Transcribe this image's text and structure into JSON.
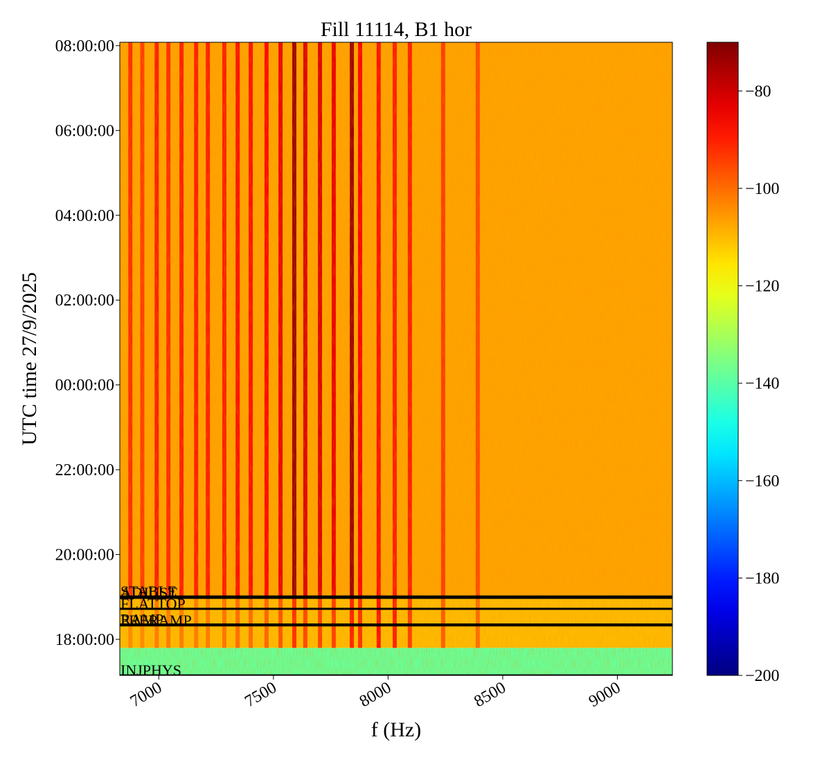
{
  "chart_data": {
    "type": "heatmap",
    "title": "Fill 11114, B1 hor",
    "x_label": "f (Hz)",
    "y_label": "UTC time 27/9/2025",
    "xlim": [
      6830,
      9240
    ],
    "xticks": [
      7000,
      7500,
      8000,
      8500,
      9000
    ],
    "ylim": [
      -6.85,
      8.08
    ],
    "yticks": [
      {
        "value": -6,
        "label": "18:00:00"
      },
      {
        "value": -4,
        "label": "20:00:00"
      },
      {
        "value": -2,
        "label": "22:00:00"
      },
      {
        "value": 0,
        "label": "00:00:00"
      },
      {
        "value": 2,
        "label": "02:00:00"
      },
      {
        "value": 4,
        "label": "04:00:00"
      },
      {
        "value": 6,
        "label": "06:00:00"
      },
      {
        "value": 8,
        "label": "08:00:00"
      }
    ],
    "x": [
      6876,
      6928,
      6991,
      7042,
      7099,
      7163,
      7214,
      7286,
      7344,
      7401,
      7470,
      7531,
      7591,
      7639,
      7703,
      7763,
      7842,
      7878,
      7959,
      8029,
      8095,
      8240,
      8391
    ],
    "y": [
      -6.85,
      -6.2,
      -5.0,
      8.08
    ],
    "background": [
      -138,
      -110,
      -107
    ],
    "z": [
      [
        -138,
        -138,
        -138,
        -138,
        -138,
        -138,
        -138,
        -138,
        -138,
        -138,
        -138,
        -138,
        -138,
        -138,
        -138,
        -138,
        -138,
        -138,
        -138,
        -138,
        -138,
        -138,
        -138
      ],
      [
        -104,
        -104,
        -102,
        -102,
        -102,
        -102,
        -102,
        -101,
        -100,
        -100,
        -99,
        -97,
        -92,
        -95,
        -95,
        -94,
        -90,
        -92,
        -88,
        -90,
        -94,
        -98,
        -100
      ],
      [
        -92,
        -94,
        -90,
        -92,
        -90,
        -90,
        -90,
        -90,
        -88,
        -88,
        -87,
        -84,
        -74,
        -82,
        -82,
        -84,
        -74,
        -86,
        -88,
        -90,
        -90,
        -94,
        -96
      ]
    ],
    "clim": [
      -200,
      -70
    ],
    "colormap": "jet",
    "cticks": [
      {
        "value": -200,
        "label": "−200"
      },
      {
        "value": -180,
        "label": "−180"
      },
      {
        "value": -160,
        "label": "−160"
      },
      {
        "value": -140,
        "label": "−140"
      },
      {
        "value": -120,
        "label": "−120"
      },
      {
        "value": -100,
        "label": "−100"
      },
      {
        "value": -80,
        "label": "−80"
      }
    ],
    "modes": [
      {
        "label": "STABLE",
        "value": -4.99
      },
      {
        "label": "ADJUST",
        "value": -5.02
      },
      {
        "label": "FLATTOP",
        "value": -5.28
      },
      {
        "label": "RAMP",
        "value": -5.65
      },
      {
        "label": "PRERAMP",
        "value": -5.67
      },
      {
        "label": "INJPHYS",
        "value": -6.85
      }
    ]
  }
}
